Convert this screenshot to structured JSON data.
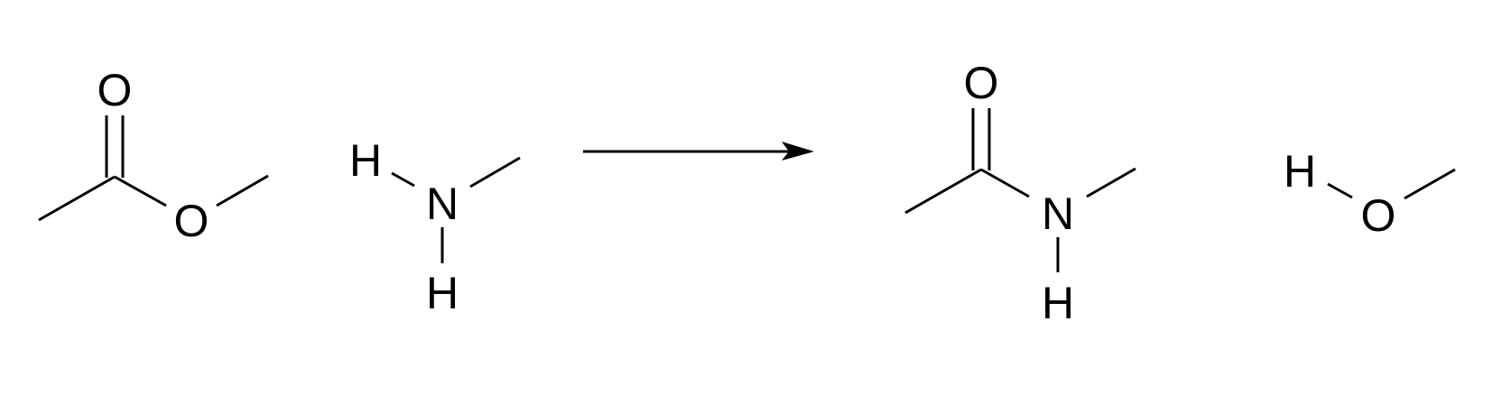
{
  "diagram": {
    "type": "chemical-reaction-scheme",
    "reactants": [
      {
        "name": "reactant-1",
        "atoms": {
          "carbonyl_o": "O",
          "ester_o": "O"
        }
      },
      {
        "name": "reactant-2",
        "atoms": {
          "h_top": "H",
          "n": "N",
          "h_bottom": "H"
        }
      }
    ],
    "arrow": {
      "direction": "right"
    },
    "products": [
      {
        "name": "product-1",
        "atoms": {
          "carbonyl_o": "O",
          "n": "N",
          "h": "H"
        }
      },
      {
        "name": "product-2",
        "atoms": {
          "h": "H",
          "o": "O"
        }
      }
    ],
    "colors": {
      "ink": "#000000",
      "background": "#ffffff"
    }
  }
}
